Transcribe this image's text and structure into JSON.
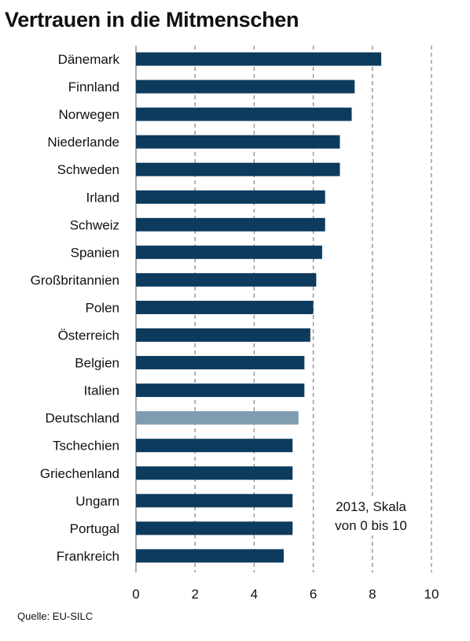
{
  "chart_data": {
    "type": "bar",
    "orientation": "horizontal",
    "title": "Vertrauen in die Mitmenschen",
    "categories": [
      "Dänemark",
      "Finnland",
      "Norwegen",
      "Niederlande",
      "Schweden",
      "Irland",
      "Schweiz",
      "Spanien",
      "Großbritannien",
      "Polen",
      "Österreich",
      "Belgien",
      "Italien",
      "Deutschland",
      "Tschechien",
      "Griechenland",
      "Ungarn",
      "Portugal",
      "Frankreich"
    ],
    "values": [
      8.3,
      7.4,
      7.3,
      6.9,
      6.9,
      6.4,
      6.4,
      6.3,
      6.1,
      6.0,
      5.9,
      5.7,
      5.7,
      5.5,
      5.3,
      5.3,
      5.3,
      5.3,
      5.0
    ],
    "highlight": "Deutschland",
    "xlim": [
      0,
      10
    ],
    "xticks": [
      "0",
      "2",
      "4",
      "6",
      "8",
      "10"
    ],
    "grid": "vertical dashed",
    "note_line1": "2013, Skala",
    "note_line2": "von 0 bis 10",
    "source": "Quelle: EU-SILC",
    "colors": {
      "bar": "#0d3b5e",
      "highlight": "#7f9cb1",
      "grid": "#8c8c8c"
    }
  }
}
